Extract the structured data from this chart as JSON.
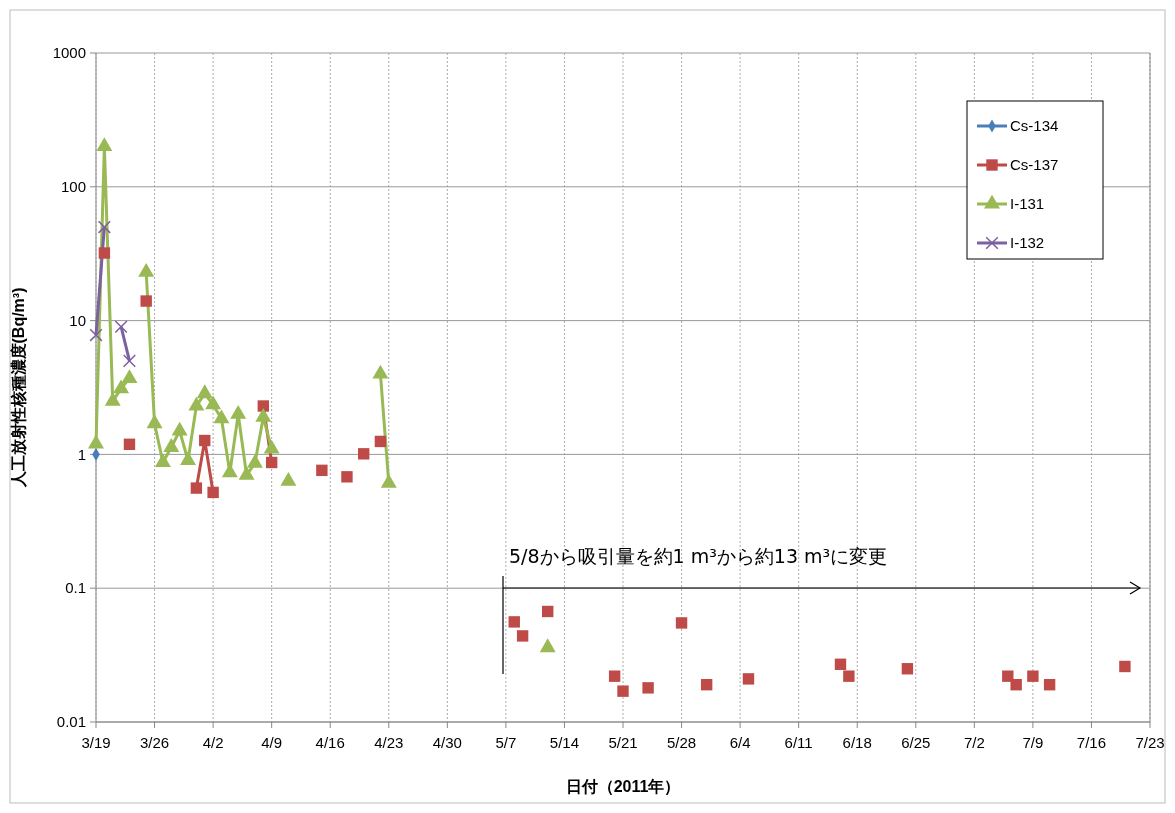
{
  "chart_data": {
    "type": "line",
    "xlabel": "日付（2011年）",
    "ylabel": "人工放射性核種濃度(Bq/m³)",
    "log": true,
    "grid": true,
    "legend": "top right",
    "xlim": [
      "2011-03-19",
      "2011-07-23"
    ],
    "xticks": [
      {
        "value": "2011-03-19",
        "label": "3/19"
      },
      {
        "value": "2011-03-26",
        "label": "3/26"
      },
      {
        "value": "2011-04-02",
        "label": "4/2"
      },
      {
        "value": "2011-04-09",
        "label": "4/9"
      },
      {
        "value": "2011-04-16",
        "label": "4/16"
      },
      {
        "value": "2011-04-23",
        "label": "4/23"
      },
      {
        "value": "2011-04-30",
        "label": "4/30"
      },
      {
        "value": "2011-05-07",
        "label": "5/7"
      },
      {
        "value": "2011-05-14",
        "label": "5/14"
      },
      {
        "value": "2011-05-21",
        "label": "5/21"
      },
      {
        "value": "2011-05-28",
        "label": "5/28"
      },
      {
        "value": "2011-06-04",
        "label": "6/4"
      },
      {
        "value": "2011-06-11",
        "label": "6/11"
      },
      {
        "value": "2011-06-18",
        "label": "6/18"
      },
      {
        "value": "2011-06-25",
        "label": "6/25"
      },
      {
        "value": "2011-07-02",
        "label": "7/2"
      },
      {
        "value": "2011-07-09",
        "label": "7/9"
      },
      {
        "value": "2011-07-16",
        "label": "7/16"
      },
      {
        "value": "2011-07-23",
        "label": "7/23"
      }
    ],
    "ylim": [
      0.01,
      1000
    ],
    "yticks": [
      0.01,
      0.1,
      1,
      10,
      100,
      1000
    ],
    "annotations": [
      "5/8から吸引量を約1 m³から約13 m³に変更"
    ],
    "series": [
      {
        "name": "Cs-134",
        "color": "#4a7ebb",
        "marker": "diamond",
        "x": [
          "2011-03-19"
        ],
        "values": [
          1.0
        ]
      },
      {
        "name": "Cs-137",
        "color": "#be4b48",
        "marker": "square",
        "x": [
          "2011-03-20",
          "2011-03-21",
          "2011-03-23",
          "2011-03-24",
          "2011-03-25",
          "2011-03-26",
          "2011-03-31",
          "2011-04-01",
          "2011-04-02",
          "2011-04-03",
          "2011-04-08",
          "2011-04-09",
          "2011-04-10",
          "2011-04-15",
          "2011-04-16",
          "2011-04-18",
          "2011-04-19",
          "2011-04-20",
          "2011-04-21",
          "2011-04-22"
        ],
        "values": [
          32,
          null,
          1.19,
          null,
          14,
          null,
          0.56,
          1.27,
          0.52,
          null,
          2.3,
          0.87,
          null,
          0.76,
          null,
          0.68,
          null,
          1.01,
          null,
          1.25
        ]
      },
      {
        "name": "I-131",
        "color": "#98b954",
        "marker": "triangle",
        "x": [
          "2011-03-19",
          "2011-03-20",
          "2011-03-21",
          "2011-03-22",
          "2011-03-23",
          "2011-03-24",
          "2011-03-25",
          "2011-03-26",
          "2011-03-27",
          "2011-03-28",
          "2011-03-29",
          "2011-03-30",
          "2011-03-31",
          "2011-04-01",
          "2011-04-02",
          "2011-04-03",
          "2011-04-04",
          "2011-04-05",
          "2011-04-06",
          "2011-04-07",
          "2011-04-08",
          "2011-04-09",
          "2011-04-10",
          "2011-04-11",
          "2011-04-12",
          "2011-04-22",
          "2011-04-23"
        ],
        "values": [
          1.2,
          200,
          2.5,
          3.1,
          3.7,
          null,
          23,
          1.7,
          0.87,
          1.13,
          1.5,
          0.9,
          2.3,
          2.85,
          2.35,
          1.85,
          0.73,
          2.0,
          0.7,
          0.86,
          1.9,
          1.1,
          null,
          0.63,
          null,
          4.0,
          0.61
        ]
      },
      {
        "name": "I-132",
        "color": "#7d60a0",
        "marker": "cross",
        "x": [
          "2011-03-19",
          "2011-03-20",
          "2011-03-21",
          "2011-03-22",
          "2011-03-23"
        ],
        "values": [
          7.8,
          50,
          null,
          9.0,
          5.0
        ]
      },
      {
        "type": "scatter",
        "color": "#be4b48",
        "marker": "square",
        "x": [
          "2011-05-08",
          "2011-05-09",
          "2011-05-12",
          "2011-05-20",
          "2011-05-21",
          "2011-05-24",
          "2011-05-28",
          "2011-05-31",
          "2011-06-05",
          "2011-06-16",
          "2011-06-17",
          "2011-06-24",
          "2011-07-06",
          "2011-07-07",
          "2011-07-09",
          "2011-07-11",
          "2011-07-20"
        ],
        "values": [
          0.056,
          0.044,
          0.067,
          0.022,
          0.017,
          0.018,
          0.055,
          0.019,
          0.021,
          0.027,
          0.022,
          0.025,
          0.022,
          0.019,
          0.022,
          0.019,
          0.026
        ]
      },
      {
        "type": "scatter",
        "color": "#98b954",
        "marker": "triangle",
        "x": [
          "2011-05-12"
        ],
        "values": [
          0.036
        ]
      }
    ]
  }
}
